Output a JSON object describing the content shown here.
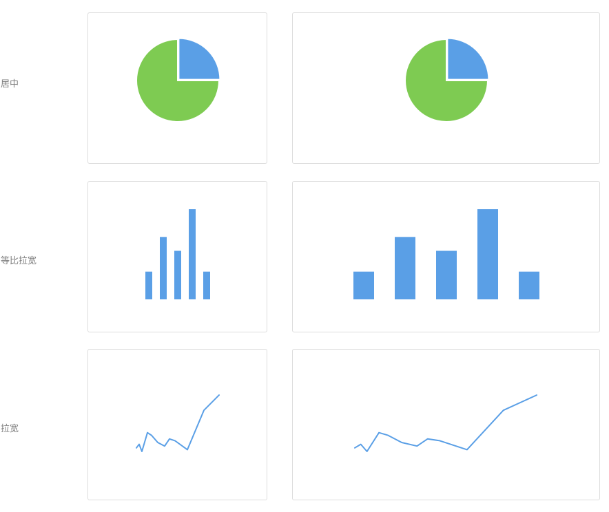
{
  "rows": [
    {
      "label": "居中"
    },
    {
      "label": "等比拉宽"
    },
    {
      "label": "拉宽"
    }
  ],
  "colors": {
    "primary": "#5a9fe6",
    "secondary": "#7ecb52",
    "border": "#dcdcdc",
    "label": "#7d7d7d"
  },
  "chart_data": [
    {
      "type": "pie",
      "mode": "center",
      "slices": [
        {
          "value": 25,
          "color": "#5a9fe6"
        },
        {
          "value": 75,
          "color": "#7ecb52"
        }
      ]
    },
    {
      "type": "pie",
      "mode": "center",
      "slices": [
        {
          "value": 25,
          "color": "#5a9fe6"
        },
        {
          "value": 75,
          "color": "#7ecb52"
        }
      ]
    },
    {
      "type": "bar",
      "mode": "proportional-widen",
      "values": [
        20,
        45,
        35,
        65,
        20
      ],
      "ylim": [
        0,
        65
      ],
      "color": "#5a9fe6"
    },
    {
      "type": "bar",
      "mode": "proportional-widen",
      "values": [
        20,
        45,
        35,
        65,
        20
      ],
      "ylim": [
        0,
        65
      ],
      "color": "#5a9fe6"
    },
    {
      "type": "line",
      "mode": "widen",
      "y": [
        34,
        38,
        30,
        51,
        48,
        40,
        36,
        44,
        42,
        32,
        76,
        93
      ],
      "ylim": [
        0,
        100
      ],
      "color": "#5a9fe6"
    },
    {
      "type": "line",
      "mode": "widen",
      "y": [
        34,
        38,
        30,
        51,
        48,
        40,
        36,
        44,
        42,
        32,
        76,
        93
      ],
      "ylim": [
        0,
        100
      ],
      "color": "#5a9fe6"
    }
  ]
}
